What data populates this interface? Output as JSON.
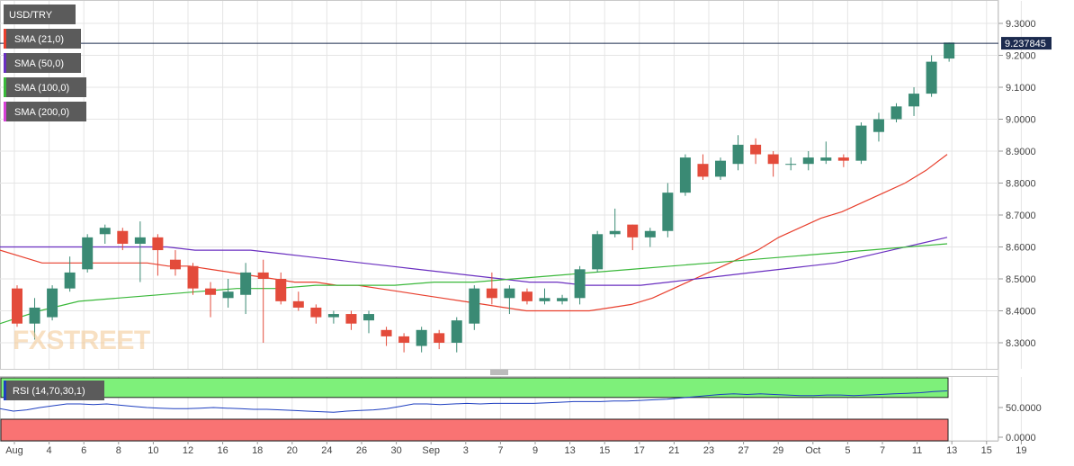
{
  "chart_data": {
    "type": "candlestick",
    "symbol": "USD/TRY",
    "last_price": "9.237845",
    "x_ticks": [
      "Aug",
      "4",
      "6",
      "8",
      "10",
      "12",
      "16",
      "18",
      "20",
      "24",
      "26",
      "30",
      "Sep",
      "3",
      "7",
      "9",
      "13",
      "15",
      "17",
      "21",
      "23",
      "27",
      "29",
      "Oct",
      "5",
      "7",
      "11",
      "13",
      "15",
      "19"
    ],
    "y_ticks": [
      "8.3000",
      "8.4000",
      "8.5000",
      "8.6000",
      "8.7000",
      "8.8000",
      "8.9000",
      "9.0000",
      "9.1000",
      "9.2000",
      "9.3000"
    ],
    "ylim": [
      8.22,
      9.34
    ],
    "candles": [
      {
        "date": "Jul 30",
        "o": 8.47,
        "h": 8.48,
        "l": 8.35,
        "c": 8.36
      },
      {
        "date": "Aug 2",
        "o": 8.36,
        "h": 8.44,
        "l": 8.31,
        "c": 8.41
      },
      {
        "date": "Aug 3",
        "o": 8.38,
        "h": 8.48,
        "l": 8.37,
        "c": 8.47
      },
      {
        "date": "Aug 4",
        "o": 8.47,
        "h": 8.57,
        "l": 8.46,
        "c": 8.52
      },
      {
        "date": "Aug 5",
        "o": 8.53,
        "h": 8.64,
        "l": 8.52,
        "c": 8.63
      },
      {
        "date": "Aug 6",
        "o": 8.64,
        "h": 8.67,
        "l": 8.61,
        "c": 8.66
      },
      {
        "date": "Aug 9",
        "o": 8.65,
        "h": 8.66,
        "l": 8.59,
        "c": 8.61
      },
      {
        "date": "Aug 10",
        "o": 8.61,
        "h": 8.68,
        "l": 8.49,
        "c": 8.63
      },
      {
        "date": "Aug 11",
        "o": 8.63,
        "h": 8.64,
        "l": 8.51,
        "c": 8.59
      },
      {
        "date": "Aug 12",
        "o": 8.56,
        "h": 8.59,
        "l": 8.51,
        "c": 8.53
      },
      {
        "date": "Aug 13",
        "o": 8.54,
        "h": 8.55,
        "l": 8.45,
        "c": 8.47
      },
      {
        "date": "Aug 16",
        "o": 8.47,
        "h": 8.49,
        "l": 8.38,
        "c": 8.45
      },
      {
        "date": "Aug 17",
        "o": 8.44,
        "h": 8.5,
        "l": 8.41,
        "c": 8.46
      },
      {
        "date": "Aug 18",
        "o": 8.45,
        "h": 8.55,
        "l": 8.39,
        "c": 8.52
      },
      {
        "date": "Aug 19",
        "o": 8.52,
        "h": 8.56,
        "l": 8.3,
        "c": 8.5
      },
      {
        "date": "Aug 20",
        "o": 8.5,
        "h": 8.52,
        "l": 8.42,
        "c": 8.43
      },
      {
        "date": "Aug 23",
        "o": 8.43,
        "h": 8.46,
        "l": 8.4,
        "c": 8.41
      },
      {
        "date": "Aug 24",
        "o": 8.41,
        "h": 8.42,
        "l": 8.36,
        "c": 8.38
      },
      {
        "date": "Aug 25",
        "o": 8.38,
        "h": 8.4,
        "l": 8.36,
        "c": 8.39
      },
      {
        "date": "Aug 26",
        "o": 8.39,
        "h": 8.4,
        "l": 8.34,
        "c": 8.36
      },
      {
        "date": "Aug 27",
        "o": 8.37,
        "h": 8.4,
        "l": 8.33,
        "c": 8.39
      },
      {
        "date": "Aug 30",
        "o": 8.34,
        "h": 8.35,
        "l": 8.29,
        "c": 8.32
      },
      {
        "date": "Aug 31",
        "o": 8.32,
        "h": 8.33,
        "l": 8.27,
        "c": 8.3
      },
      {
        "date": "Sep 1",
        "o": 8.29,
        "h": 8.35,
        "l": 8.27,
        "c": 8.34
      },
      {
        "date": "Sep 2",
        "o": 8.33,
        "h": 8.34,
        "l": 8.28,
        "c": 8.3
      },
      {
        "date": "Sep 3",
        "o": 8.3,
        "h": 8.38,
        "l": 8.27,
        "c": 8.37
      },
      {
        "date": "Sep 6",
        "o": 8.36,
        "h": 8.48,
        "l": 8.34,
        "c": 8.47
      },
      {
        "date": "Sep 7",
        "o": 8.47,
        "h": 8.52,
        "l": 8.42,
        "c": 8.44
      },
      {
        "date": "Sep 8",
        "o": 8.44,
        "h": 8.48,
        "l": 8.39,
        "c": 8.47
      },
      {
        "date": "Sep 9",
        "o": 8.46,
        "h": 8.47,
        "l": 8.42,
        "c": 8.43
      },
      {
        "date": "Sep 10",
        "o": 8.43,
        "h": 8.47,
        "l": 8.42,
        "c": 8.44
      },
      {
        "date": "Sep 13",
        "o": 8.43,
        "h": 8.45,
        "l": 8.42,
        "c": 8.44
      },
      {
        "date": "Sep 14",
        "o": 8.44,
        "h": 8.54,
        "l": 8.42,
        "c": 8.53
      },
      {
        "date": "Sep 15",
        "o": 8.53,
        "h": 8.65,
        "l": 8.52,
        "c": 8.64
      },
      {
        "date": "Sep 16",
        "o": 8.64,
        "h": 8.72,
        "l": 8.63,
        "c": 8.65
      },
      {
        "date": "Sep 17",
        "o": 8.67,
        "h": 8.67,
        "l": 8.59,
        "c": 8.63
      },
      {
        "date": "Sep 20",
        "o": 8.63,
        "h": 8.66,
        "l": 8.6,
        "c": 8.65
      },
      {
        "date": "Sep 21",
        "o": 8.65,
        "h": 8.8,
        "l": 8.63,
        "c": 8.77
      },
      {
        "date": "Sep 22",
        "o": 8.77,
        "h": 8.89,
        "l": 8.76,
        "c": 8.88
      },
      {
        "date": "Sep 23",
        "o": 8.86,
        "h": 8.89,
        "l": 8.81,
        "c": 8.82
      },
      {
        "date": "Sep 24",
        "o": 8.82,
        "h": 8.88,
        "l": 8.81,
        "c": 8.87
      },
      {
        "date": "Sep 27",
        "o": 8.86,
        "h": 8.95,
        "l": 8.84,
        "c": 8.92
      },
      {
        "date": "Sep 28",
        "o": 8.92,
        "h": 8.94,
        "l": 8.86,
        "c": 8.89
      },
      {
        "date": "Sep 29",
        "o": 8.89,
        "h": 8.9,
        "l": 8.82,
        "c": 8.86
      },
      {
        "date": "Sep 30",
        "o": 8.86,
        "h": 8.88,
        "l": 8.84,
        "c": 8.86
      },
      {
        "date": "Oct 1",
        "o": 8.86,
        "h": 8.9,
        "l": 8.84,
        "c": 8.88
      },
      {
        "date": "Oct 4",
        "o": 8.87,
        "h": 8.93,
        "l": 8.86,
        "c": 8.88
      },
      {
        "date": "Oct 5",
        "o": 8.88,
        "h": 8.89,
        "l": 8.85,
        "c": 8.87
      },
      {
        "date": "Oct 6",
        "o": 8.87,
        "h": 8.99,
        "l": 8.86,
        "c": 8.98
      },
      {
        "date": "Oct 7",
        "o": 8.96,
        "h": 9.02,
        "l": 8.93,
        "c": 9.0
      },
      {
        "date": "Oct 8",
        "o": 9.0,
        "h": 9.05,
        "l": 8.99,
        "c": 9.04
      },
      {
        "date": "Oct 11",
        "o": 9.04,
        "h": 9.1,
        "l": 9.01,
        "c": 9.08
      },
      {
        "date": "Oct 12",
        "o": 9.08,
        "h": 9.2,
        "l": 9.07,
        "c": 9.18
      },
      {
        "date": "Oct 13",
        "o": 9.19,
        "h": 9.24,
        "l": 9.18,
        "c": 9.24
      }
    ],
    "series": [
      {
        "name": "SMA (21,0)",
        "color": "#e83f2d",
        "values": [
          8.59,
          8.57,
          8.55,
          8.55,
          8.55,
          8.55,
          8.55,
          8.55,
          8.54,
          8.54,
          8.53,
          8.52,
          8.51,
          8.5,
          8.49,
          8.49,
          8.48,
          8.48,
          8.47,
          8.46,
          8.45,
          8.44,
          8.43,
          8.42,
          8.41,
          8.4,
          8.4,
          8.4,
          8.4,
          8.41,
          8.42,
          8.44,
          8.47,
          8.5,
          8.53,
          8.56,
          8.59,
          8.63,
          8.66,
          8.69,
          8.71,
          8.74,
          8.77,
          8.8,
          8.84,
          8.89
        ]
      },
      {
        "name": "SMA (50,0)",
        "color": "#6a2fc0",
        "values": [
          8.6,
          8.6,
          8.6,
          8.6,
          8.6,
          8.6,
          8.6,
          8.59,
          8.59,
          8.59,
          8.58,
          8.57,
          8.56,
          8.55,
          8.54,
          8.53,
          8.52,
          8.51,
          8.5,
          8.49,
          8.49,
          8.48,
          8.48,
          8.48,
          8.49,
          8.5,
          8.51,
          8.52,
          8.53,
          8.54,
          8.55,
          8.57,
          8.59,
          8.61,
          8.63
        ]
      },
      {
        "name": "SMA (100,0)",
        "color": "#3ab83a",
        "values": [
          8.36,
          8.4,
          8.43,
          8.44,
          8.45,
          8.46,
          8.47,
          8.47,
          8.48,
          8.48,
          8.48,
          8.49,
          8.49,
          8.5,
          8.51,
          8.52,
          8.53,
          8.54,
          8.55,
          8.56,
          8.57,
          8.58,
          8.59,
          8.6,
          8.61
        ]
      },
      {
        "name": "SMA (200,0)",
        "color": "#d640d6",
        "values": []
      }
    ],
    "rsi": {
      "name": "RSI (14,70,30,1)",
      "y_ticks": [
        "50.0000",
        "0.0000"
      ],
      "values": [
        48,
        44,
        46,
        50,
        53,
        56,
        56,
        55,
        56,
        54,
        52,
        50,
        49,
        48,
        48,
        49,
        50,
        49,
        48,
        47,
        47,
        46,
        45,
        44,
        43,
        42,
        44,
        45,
        46,
        48,
        52,
        56,
        56,
        55,
        56,
        57,
        56,
        57,
        57,
        57,
        57,
        58,
        59,
        60,
        60,
        60,
        61,
        61,
        62,
        63,
        64,
        66,
        68,
        70,
        72,
        73,
        72,
        73,
        72,
        71,
        70,
        70,
        71,
        71,
        70,
        71,
        72,
        73,
        74,
        75,
        77,
        78
      ]
    },
    "watermark": "FXSTREET",
    "legend": [
      "USD/TRY",
      "SMA (21,0)",
      "SMA (50,0)",
      "SMA (100,0)",
      "SMA (200,0)"
    ]
  },
  "colors": {
    "up": "#3a8a74",
    "down": "#e34b3b",
    "rsi_line": "#1e3fc0",
    "rsi_overbought": "#7ef07a",
    "rsi_oversold": "#f97373",
    "price_tag": "#1b2a4e",
    "grid": "#e5e5e5"
  }
}
